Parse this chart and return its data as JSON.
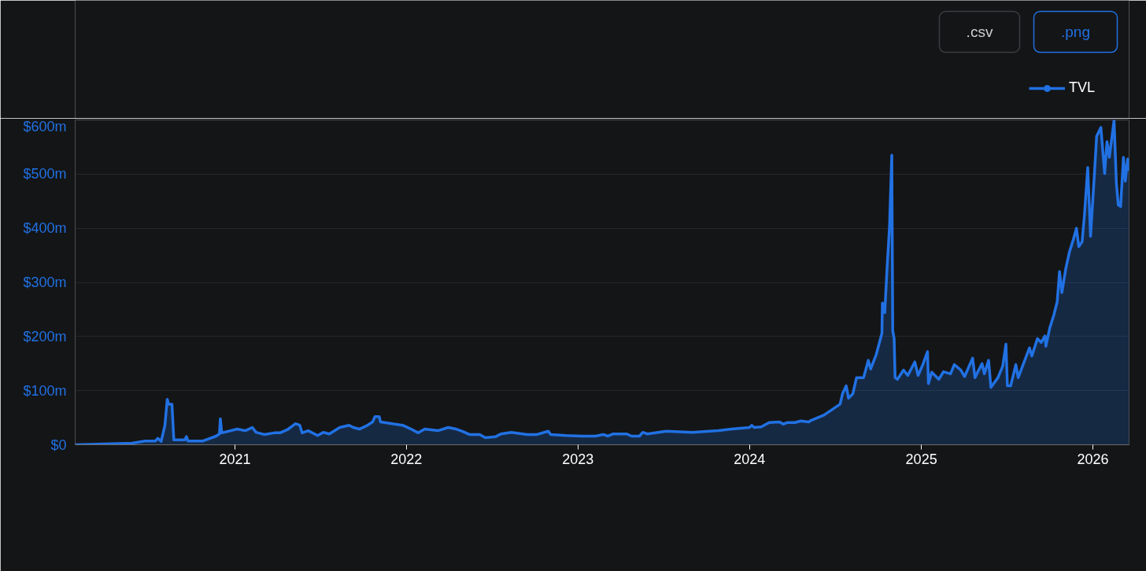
{
  "chart_data": {
    "type": "area",
    "x": [
      "2020-01-27",
      "2020-05-27",
      "2020-06-24",
      "2020-07-16",
      "2020-07-21",
      "2020-07-28",
      "2020-08-05",
      "2020-08-10",
      "2020-08-13",
      "2020-08-20",
      "2020-08-24",
      "2020-09-16",
      "2020-09-20",
      "2020-09-23",
      "2020-10-25",
      "2020-11-22",
      "2020-11-29",
      "2020-12-01",
      "2020-12-04",
      "2021-01-06",
      "2021-01-23",
      "2021-02-07",
      "2021-02-15",
      "2021-03-04",
      "2021-03-26",
      "2021-04-07",
      "2021-04-23",
      "2021-05-10",
      "2021-05-19",
      "2021-05-24",
      "2021-06-06",
      "2021-06-26",
      "2021-07-08",
      "2021-07-21",
      "2021-08-12",
      "2021-09-01",
      "2021-09-10",
      "2021-09-23",
      "2021-10-08",
      "2021-10-21",
      "2021-10-26",
      "2021-11-04",
      "2021-11-07",
      "2021-12-02",
      "2021-12-24",
      "2022-01-11",
      "2022-01-26",
      "2022-02-09",
      "2022-03-09",
      "2022-03-31",
      "2022-04-17",
      "2022-04-30",
      "2022-05-15",
      "2022-06-06",
      "2022-06-18",
      "2022-07-10",
      "2022-07-21",
      "2022-08-12",
      "2022-09-15",
      "2022-10-06",
      "2022-10-30",
      "2022-11-04",
      "2022-12-07",
      "2023-01-09",
      "2023-02-07",
      "2023-02-24",
      "2023-03-06",
      "2023-03-17",
      "2023-04-15",
      "2023-04-25",
      "2023-05-12",
      "2023-05-19",
      "2023-05-29",
      "2023-07-08",
      "2023-09-01",
      "2023-10-27",
      "2023-11-24",
      "2024-01-01",
      "2024-01-06",
      "2024-01-11",
      "2024-01-26",
      "2024-02-12",
      "2024-03-05",
      "2024-03-13",
      "2024-03-21",
      "2024-04-07",
      "2024-04-19",
      "2024-05-06",
      "2024-05-11",
      "2024-06-08",
      "2024-07-12",
      "2024-07-17",
      "2024-07-25",
      "2024-07-30",
      "2024-08-08",
      "2024-08-16",
      "2024-08-31",
      "2024-09-10",
      "2024-09-15",
      "2024-09-27",
      "2024-10-09",
      "2024-10-10",
      "2024-10-15",
      "2024-10-20",
      "2024-10-25",
      "2024-10-30",
      "2024-11-01",
      "2024-11-04",
      "2024-11-06",
      "2024-11-11",
      "2024-11-24",
      "2024-12-03",
      "2024-12-18",
      "2024-12-25",
      "2025-01-04",
      "2025-01-14",
      "2025-01-16",
      "2025-01-23",
      "2025-02-07",
      "2025-02-17",
      "2025-03-04",
      "2025-03-12",
      "2025-03-26",
      "2025-04-03",
      "2025-04-20",
      "2025-04-25",
      "2025-05-10",
      "2025-05-15",
      "2025-05-24",
      "2025-05-29",
      "2025-06-13",
      "2025-06-23",
      "2025-06-30",
      "2025-07-03",
      "2025-07-10",
      "2025-07-21",
      "2025-07-26",
      "2025-08-19",
      "2025-08-24",
      "2025-09-05",
      "2025-09-13",
      "2025-09-21",
      "2025-09-23",
      "2025-10-01",
      "2025-10-10",
      "2025-10-17",
      "2025-10-22",
      "2025-10-27",
      "2025-11-04",
      "2025-11-12",
      "2025-11-21",
      "2025-11-27",
      "2025-12-02",
      "2025-12-09",
      "2025-12-14",
      "2025-12-21",
      "2025-12-27",
      "2026-01-04",
      "2026-01-09",
      "2026-01-18",
      "2026-01-26",
      "2026-01-31",
      "2026-02-05",
      "2026-02-15",
      "2026-02-20",
      "2026-02-24",
      "2026-03-01",
      "2026-03-07",
      "2026-03-11",
      "2026-03-16",
      "2026-03-19"
    ],
    "series": [
      {
        "name": "TVL",
        "color": "#2171e3",
        "values": [
          0,
          3,
          7,
          7,
          12,
          6,
          36,
          84,
          75,
          75,
          9,
          9,
          15,
          7,
          7,
          16,
          20,
          48,
          22,
          29,
          26,
          32,
          23,
          19,
          22,
          22,
          28,
          39,
          36,
          22,
          26,
          17,
          23,
          20,
          32,
          36,
          32,
          29,
          35,
          42,
          52,
          52,
          42,
          39,
          36,
          29,
          22,
          29,
          26,
          32,
          29,
          25,
          19,
          19,
          13,
          15,
          20,
          23,
          19,
          19,
          25,
          19,
          17,
          16,
          16,
          19,
          16,
          20,
          20,
          16,
          16,
          23,
          20,
          25,
          23,
          26,
          29,
          32,
          36,
          32,
          33,
          41,
          42,
          38,
          41,
          41,
          44,
          42,
          45,
          55,
          75,
          94,
          109,
          86,
          94,
          124,
          124,
          156,
          140,
          167,
          206,
          262,
          244,
          327,
          400,
          535,
          211,
          196,
          124,
          121,
          138,
          128,
          153,
          128,
          148,
          172,
          113,
          134,
          121,
          135,
          131,
          148,
          138,
          126,
          160,
          124,
          150,
          131,
          156,
          106,
          124,
          145,
          186,
          109,
          109,
          148,
          124,
          179,
          164,
          196,
          189,
          201,
          182,
          215,
          240,
          264,
          320,
          281,
          324,
          356,
          381,
          400,
          366,
          375,
          424,
          512,
          385,
          497,
          570,
          586,
          501,
          560,
          531,
          599,
          483,
          443,
          440,
          531,
          487,
          528,
          506
        ]
      }
    ],
    "xlim": [
      "2020-01-27",
      "2026-03-19"
    ],
    "xticks": [
      "2021",
      "2022",
      "2023",
      "2024",
      "2025",
      "2026"
    ],
    "ylim": [
      0,
      600
    ],
    "yticks": [
      {
        "value": 0,
        "label": "$0"
      },
      {
        "value": 100,
        "label": "$100m"
      },
      {
        "value": 200,
        "label": "$200m"
      },
      {
        "value": 300,
        "label": "$300m"
      },
      {
        "value": 400,
        "label": "$400m"
      },
      {
        "value": 500,
        "label": "$500m"
      },
      {
        "value": 600,
        "label": "$600m"
      }
    ],
    "grid": "y",
    "legend": "top right",
    "marker": "none",
    "annotations": [
      ".csv",
      ".png"
    ]
  }
}
